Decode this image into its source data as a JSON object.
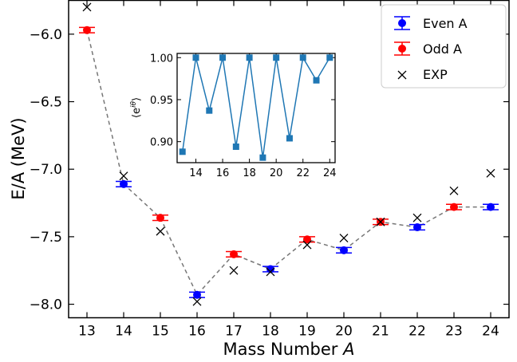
{
  "chart_data": [
    {
      "type": "scatter",
      "xlabel": "Mass Number",
      "xlabel_italic": "A",
      "ylabel": "E/A (MeV)",
      "xlim": [
        12.5,
        24.5
      ],
      "ylim": [
        -8.1,
        -5.75
      ],
      "xticks": [
        13,
        14,
        15,
        16,
        17,
        18,
        19,
        20,
        21,
        22,
        23,
        24
      ],
      "yticks": [
        -8.0,
        -7.5,
        -7.0,
        -6.5,
        -6.0
      ],
      "ytick_labels": [
        "−8.0",
        "−7.5",
        "−7.0",
        "−6.5",
        "−6.0"
      ],
      "x": [
        13,
        14,
        15,
        16,
        17,
        18,
        19,
        20,
        21,
        22,
        23,
        24
      ],
      "y": [
        -5.97,
        -7.11,
        -7.36,
        -7.93,
        -7.63,
        -7.74,
        -7.52,
        -7.6,
        -7.39,
        -7.43,
        -7.28,
        -7.28
      ],
      "yerr": [
        0.02,
        0.02,
        0.02,
        0.02,
        0.02,
        0.02,
        0.02,
        0.02,
        0.02,
        0.02,
        0.02,
        0.02
      ],
      "series": [
        {
          "name": "Even A",
          "color": "#0000ff",
          "x": [
            14,
            16,
            18,
            20,
            22,
            24
          ]
        },
        {
          "name": "Odd A",
          "color": "#ff0000",
          "x": [
            13,
            15,
            17,
            19,
            21,
            23
          ]
        },
        {
          "name": "EXP",
          "color": "#000000",
          "x": [
            13,
            14,
            15,
            16,
            17,
            18,
            19,
            20,
            21,
            22,
            23,
            24
          ],
          "y": [
            -5.8,
            -7.05,
            -7.46,
            -7.98,
            -7.75,
            -7.76,
            -7.56,
            -7.51,
            -7.39,
            -7.36,
            -7.16,
            -7.03
          ]
        }
      ],
      "legend": {
        "position": "top-right",
        "entries": [
          "Even A",
          "Odd A",
          "EXP"
        ]
      }
    },
    {
      "type": "line",
      "ylabel": "⟨e",
      "ylabel_sup": "iθ",
      "ylabel_close": "⟩",
      "xlim": [
        12.6,
        24.4
      ],
      "ylim": [
        0.875,
        1.005
      ],
      "xticks": [
        14,
        16,
        18,
        20,
        22,
        24
      ],
      "yticks": [
        0.9,
        0.95,
        1.0
      ],
      "ytick_labels": [
        "0.90",
        "0.95",
        "1.00"
      ],
      "color": "#1f77b4",
      "x": [
        13,
        14,
        15,
        16,
        17,
        18,
        19,
        20,
        21,
        22,
        23,
        24
      ],
      "y": [
        0.888,
        1.0,
        0.937,
        1.0,
        0.894,
        1.0,
        0.881,
        1.0,
        0.904,
        1.0,
        0.973,
        1.0
      ]
    }
  ]
}
